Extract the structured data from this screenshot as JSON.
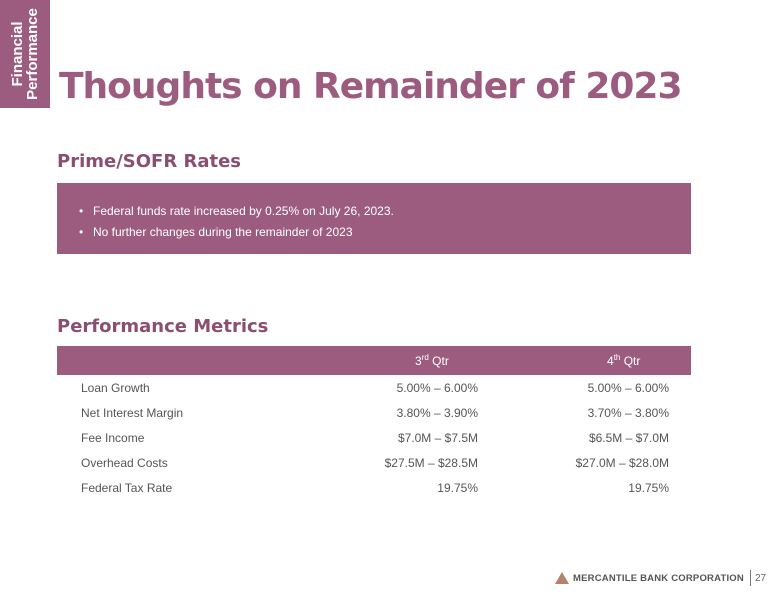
{
  "side_tab": {
    "line1": "Financial",
    "line2": "Performance"
  },
  "title": "Thoughts on Remainder of 2023",
  "prime": {
    "heading": "Prime/SOFR Rates",
    "bullets": [
      "Federal funds rate increased by 0.25% on July 26, 2023.",
      "No further changes during the remainder of 2023"
    ]
  },
  "metrics": {
    "heading": "Performance Metrics",
    "columns": [
      {
        "num": "3",
        "sup": "rd",
        "label": "Qtr"
      },
      {
        "num": "4",
        "sup": "th",
        "label": "Qtr"
      }
    ],
    "rows": [
      {
        "label": "Loan Growth",
        "q3": "5.00% – 6.00%",
        "q4": "5.00% – 6.00%"
      },
      {
        "label": "Net Interest Margin",
        "q3": "3.80% – 3.90%",
        "q4": "3.70% – 3.80%"
      },
      {
        "label": "Fee Income",
        "q3": "$7.0M – $7.5M",
        "q4": "$6.5M – $7.0M"
      },
      {
        "label": "Overhead Costs",
        "q3": "$27.5M – $28.5M",
        "q4": "$27.0M – $28.0M"
      },
      {
        "label": "Federal Tax Rate",
        "q3": "19.75%",
        "q4": "19.75%"
      }
    ]
  },
  "footer": {
    "company": "MERCANTILE BANK CORPORATION",
    "page": "27",
    "logo_icon": "triangle-logo-icon"
  },
  "colors": {
    "accent": "#9c5c7f",
    "logo": "#b5836a"
  }
}
